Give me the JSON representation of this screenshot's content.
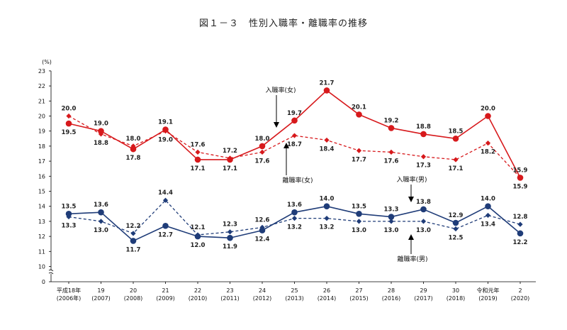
{
  "title": "図１－３　性別入職率・離職率の推移",
  "chart_data": {
    "type": "line",
    "ylabel": "(%)",
    "ylim": [
      0,
      23
    ],
    "y_ticks": [
      0,
      10,
      11,
      12,
      13,
      14,
      15,
      16,
      17,
      18,
      19,
      20,
      21,
      22,
      23
    ],
    "y_axis_break": true,
    "categories": [
      [
        "平成18年",
        "(2006年)"
      ],
      [
        "19",
        "(2007)"
      ],
      [
        "20",
        "(2008)"
      ],
      [
        "21",
        "(2009)"
      ],
      [
        "22",
        "(2010)"
      ],
      [
        "23",
        "(2011)"
      ],
      [
        "24",
        "(2012)"
      ],
      [
        "25",
        "(2013)"
      ],
      [
        "26",
        "(2014)"
      ],
      [
        "27",
        "(2015)"
      ],
      [
        "28",
        "(2016)"
      ],
      [
        "29",
        "(2017)"
      ],
      [
        "30",
        "(2018)"
      ],
      [
        "令和元年",
        "(2019)"
      ],
      [
        "2",
        "(2020)"
      ]
    ],
    "series": [
      {
        "name": "入職率(女)",
        "color": "#d7191c",
        "style": "solid",
        "marker": "circle",
        "values": [
          19.5,
          19.0,
          17.8,
          19.1,
          17.1,
          17.1,
          18.0,
          19.7,
          21.7,
          20.1,
          19.2,
          18.8,
          18.5,
          20.0,
          15.9
        ]
      },
      {
        "name": "離職率(女)",
        "color": "#d7191c",
        "style": "dashed",
        "marker": "diamond",
        "values": [
          20.0,
          18.8,
          18.0,
          19.0,
          17.6,
          17.2,
          17.6,
          18.7,
          18.4,
          17.7,
          17.6,
          17.3,
          17.1,
          18.2,
          15.9
        ]
      },
      {
        "name": "入職率(男)",
        "color": "#1f3c78",
        "style": "solid",
        "marker": "circle",
        "values": [
          13.5,
          13.6,
          11.7,
          12.7,
          12.0,
          11.9,
          12.4,
          13.6,
          14.0,
          13.5,
          13.3,
          13.8,
          12.9,
          14.0,
          12.2
        ]
      },
      {
        "name": "離職率(男)",
        "color": "#1f3c78",
        "style": "dashed",
        "marker": "diamond",
        "values": [
          13.3,
          13.0,
          12.2,
          14.4,
          12.1,
          12.3,
          12.6,
          13.2,
          13.2,
          13.0,
          13.0,
          13.0,
          12.5,
          13.4,
          12.8
        ]
      }
    ],
    "data_labels": [
      [
        "20.0",
        "19.5",
        "13.5",
        "13.3"
      ],
      [
        "19.0",
        "18.8",
        "13.6",
        "13.0"
      ],
      [
        "18.0",
        "17.8",
        "12.2",
        "11.7"
      ],
      [
        "19.1",
        "19.0",
        "14.4",
        "12.7"
      ],
      [
        "17.6",
        "17.1",
        "12.1",
        "12.0"
      ],
      [
        "17.2",
        "17.1",
        "12.3",
        "11.9"
      ],
      [
        "18.0",
        "17.6",
        "12.6",
        "12.4"
      ],
      [
        "19.7",
        "18.7",
        "13.6",
        "13.2"
      ],
      [
        "21.7",
        "18.4",
        "14.0",
        "13.2"
      ],
      [
        "20.1",
        "17.7",
        "13.5",
        "13.0"
      ],
      [
        "19.2",
        "17.6",
        "13.3",
        "13.0"
      ],
      [
        "18.8",
        "17.3",
        "13.8",
        "13.0"
      ],
      [
        "18.5",
        "17.1",
        "12.9",
        "12.5"
      ],
      [
        "20.0",
        "18.2",
        "14.0",
        "13.4"
      ],
      [
        "15.9",
        "15.9",
        "12.8",
        "12.2"
      ]
    ],
    "annotations": [
      "入職率(女)",
      "離職率(女)",
      "入職率(男)",
      "離職率(男)"
    ]
  }
}
